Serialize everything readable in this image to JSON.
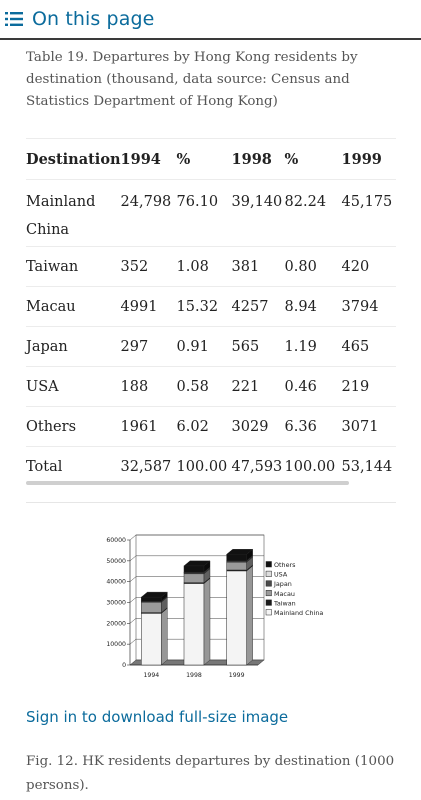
{
  "header": {
    "title": "On this page",
    "icon": "list-icon"
  },
  "table": {
    "caption": "Table 19. Departures by Hong Kong residents by destination (thousand, data source: Census and Statistics Department of Hong Kong)",
    "columns": [
      "Destination",
      "1994",
      "%",
      "1998",
      "%",
      "1999"
    ],
    "rows": [
      [
        "Mainland China",
        "24,798",
        "76.10",
        "39,140",
        "82.24",
        "45,175"
      ],
      [
        "Taiwan",
        "352",
        "1.08",
        "381",
        "0.80",
        "420"
      ],
      [
        "Macau",
        "4991",
        "15.32",
        "4257",
        "8.94",
        "3794"
      ],
      [
        "Japan",
        "297",
        "0.91",
        "565",
        "1.19",
        "465"
      ],
      [
        "USA",
        "188",
        "0.58",
        "221",
        "0.46",
        "219"
      ],
      [
        "Others",
        "1961",
        "6.02",
        "3029",
        "6.36",
        "3071"
      ],
      [
        "Total",
        "32,587",
        "100.00",
        "47,593",
        "100.00",
        "53,144"
      ]
    ]
  },
  "chart_data": {
    "type": "bar",
    "stacked": true,
    "categories": [
      "1994",
      "1998",
      "1999"
    ],
    "series": [
      {
        "name": "Mainland China",
        "values": [
          24798,
          39140,
          45175
        ],
        "color": "#f4f4f4"
      },
      {
        "name": "Taiwan",
        "values": [
          352,
          381,
          420
        ],
        "color": "#1a1a1a"
      },
      {
        "name": "Macau",
        "values": [
          4991,
          4257,
          3794
        ],
        "color": "#9a9a9a"
      },
      {
        "name": "Japan",
        "values": [
          297,
          565,
          465
        ],
        "color": "#4a4a4a"
      },
      {
        "name": "USA",
        "values": [
          188,
          221,
          219
        ],
        "color": "#dcdcdc"
      },
      {
        "name": "Others",
        "values": [
          1961,
          3029,
          3071
        ],
        "color": "#111111"
      }
    ],
    "legend_order": [
      "Others",
      "USA",
      "Japan",
      "Macau",
      "Taiwan",
      "Mainland China"
    ],
    "yticks": [
      "0",
      "10000",
      "20000",
      "30000",
      "40000",
      "50000",
      "60000"
    ],
    "ylim": [
      0,
      60000
    ],
    "legend": "right",
    "grid": true
  },
  "links": {
    "download": "Sign in to download full-size image"
  },
  "figure": {
    "caption": "Fig. 12. HK residents departures by destination (1000 persons)."
  }
}
